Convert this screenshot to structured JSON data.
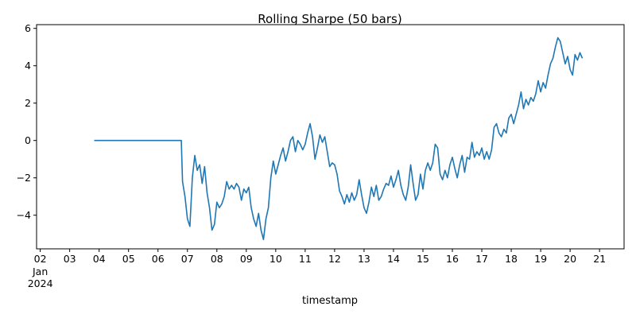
{
  "chart_data": {
    "type": "line",
    "title": "Rolling Sharpe (50 bars)",
    "xlabel": "timestamp",
    "ylabel": "",
    "x_tick_labels": [
      "02",
      "03",
      "04",
      "05",
      "06",
      "07",
      "08",
      "09",
      "10",
      "11",
      "12",
      "13",
      "14",
      "15",
      "16",
      "17",
      "18",
      "19",
      "20",
      "21"
    ],
    "x_tick_sublabel_month": "Jan",
    "x_tick_sublabel_year": "2024",
    "y_ticks": [
      -4,
      -2,
      0,
      2,
      4,
      6
    ],
    "y_tick_labels": [
      "−4",
      "−2",
      "0",
      "2",
      "4",
      "6"
    ],
    "xlim": [
      "2024-01-01T21:00",
      "2024-01-21T20:00"
    ],
    "ylim": [
      -5.8,
      6.2
    ],
    "grid": false,
    "line_color": "#1f77b4",
    "series": [
      {
        "points": [
          [
            "2024-01-03T20:00",
            0.0
          ],
          [
            "2024-01-04T12:00",
            0.0
          ],
          [
            "2024-01-05T12:00",
            0.0
          ],
          [
            "2024-01-06T12:00",
            0.0
          ],
          [
            "2024-01-06T19:00",
            0.0
          ],
          [
            "2024-01-06T20:00",
            -2.2
          ],
          [
            "2024-01-06T22:00",
            -3.0
          ],
          [
            "2024-01-07T00:00",
            -4.2
          ],
          [
            "2024-01-07T02:00",
            -4.6
          ],
          [
            "2024-01-07T04:00",
            -2.0
          ],
          [
            "2024-01-07T06:00",
            -0.8
          ],
          [
            "2024-01-07T08:00",
            -1.6
          ],
          [
            "2024-01-07T10:00",
            -1.3
          ],
          [
            "2024-01-07T12:00",
            -2.3
          ],
          [
            "2024-01-07T14:00",
            -1.4
          ],
          [
            "2024-01-07T16:00",
            -2.8
          ],
          [
            "2024-01-07T18:00",
            -3.6
          ],
          [
            "2024-01-07T20:00",
            -4.8
          ],
          [
            "2024-01-07T22:00",
            -4.5
          ],
          [
            "2024-01-08T00:00",
            -3.3
          ],
          [
            "2024-01-08T02:00",
            -3.6
          ],
          [
            "2024-01-08T04:00",
            -3.4
          ],
          [
            "2024-01-08T06:00",
            -3.0
          ],
          [
            "2024-01-08T08:00",
            -2.2
          ],
          [
            "2024-01-08T10:00",
            -2.6
          ],
          [
            "2024-01-08T12:00",
            -2.4
          ],
          [
            "2024-01-08T14:00",
            -2.6
          ],
          [
            "2024-01-08T16:00",
            -2.3
          ],
          [
            "2024-01-08T18:00",
            -2.5
          ],
          [
            "2024-01-08T20:00",
            -3.2
          ],
          [
            "2024-01-08T22:00",
            -2.6
          ],
          [
            "2024-01-09T00:00",
            -2.8
          ],
          [
            "2024-01-09T02:00",
            -2.5
          ],
          [
            "2024-01-09T04:00",
            -3.6
          ],
          [
            "2024-01-09T06:00",
            -4.2
          ],
          [
            "2024-01-09T08:00",
            -4.6
          ],
          [
            "2024-01-09T10:00",
            -3.9
          ],
          [
            "2024-01-09T12:00",
            -4.8
          ],
          [
            "2024-01-09T14:00",
            -5.3
          ],
          [
            "2024-01-09T16:00",
            -4.2
          ],
          [
            "2024-01-09T18:00",
            -3.6
          ],
          [
            "2024-01-09T20:00",
            -2.0
          ],
          [
            "2024-01-09T22:00",
            -1.1
          ],
          [
            "2024-01-10T00:00",
            -1.8
          ],
          [
            "2024-01-10T02:00",
            -1.3
          ],
          [
            "2024-01-10T04:00",
            -0.8
          ],
          [
            "2024-01-10T06:00",
            -0.4
          ],
          [
            "2024-01-10T08:00",
            -1.1
          ],
          [
            "2024-01-10T10:00",
            -0.6
          ],
          [
            "2024-01-10T12:00",
            0.0
          ],
          [
            "2024-01-10T14:00",
            0.2
          ],
          [
            "2024-01-10T16:00",
            -0.6
          ],
          [
            "2024-01-10T18:00",
            0.0
          ],
          [
            "2024-01-10T20:00",
            -0.2
          ],
          [
            "2024-01-10T22:00",
            -0.5
          ],
          [
            "2024-01-11T00:00",
            -0.2
          ],
          [
            "2024-01-11T02:00",
            0.4
          ],
          [
            "2024-01-11T04:00",
            0.9
          ],
          [
            "2024-01-11T06:00",
            0.2
          ],
          [
            "2024-01-11T08:00",
            -1.0
          ],
          [
            "2024-01-11T10:00",
            -0.4
          ],
          [
            "2024-01-11T12:00",
            0.3
          ],
          [
            "2024-01-11T14:00",
            -0.1
          ],
          [
            "2024-01-11T16:00",
            0.2
          ],
          [
            "2024-01-11T18:00",
            -0.6
          ],
          [
            "2024-01-11T20:00",
            -1.4
          ],
          [
            "2024-01-11T22:00",
            -1.2
          ],
          [
            "2024-01-12T00:00",
            -1.3
          ],
          [
            "2024-01-12T02:00",
            -1.8
          ],
          [
            "2024-01-12T04:00",
            -2.7
          ],
          [
            "2024-01-12T06:00",
            -3.0
          ],
          [
            "2024-01-12T08:00",
            -3.4
          ],
          [
            "2024-01-12T10:00",
            -2.9
          ],
          [
            "2024-01-12T12:00",
            -3.3
          ],
          [
            "2024-01-12T14:00",
            -2.8
          ],
          [
            "2024-01-12T16:00",
            -3.2
          ],
          [
            "2024-01-12T18:00",
            -2.9
          ],
          [
            "2024-01-12T20:00",
            -2.1
          ],
          [
            "2024-01-12T22:00",
            -2.9
          ],
          [
            "2024-01-13T00:00",
            -3.6
          ],
          [
            "2024-01-13T02:00",
            -3.9
          ],
          [
            "2024-01-13T04:00",
            -3.3
          ],
          [
            "2024-01-13T06:00",
            -2.5
          ],
          [
            "2024-01-13T08:00",
            -3.0
          ],
          [
            "2024-01-13T10:00",
            -2.4
          ],
          [
            "2024-01-13T12:00",
            -3.2
          ],
          [
            "2024-01-13T14:00",
            -3.0
          ],
          [
            "2024-01-13T16:00",
            -2.6
          ],
          [
            "2024-01-13T18:00",
            -2.3
          ],
          [
            "2024-01-13T20:00",
            -2.4
          ],
          [
            "2024-01-13T22:00",
            -1.9
          ],
          [
            "2024-01-14T00:00",
            -2.5
          ],
          [
            "2024-01-14T02:00",
            -2.1
          ],
          [
            "2024-01-14T04:00",
            -1.6
          ],
          [
            "2024-01-14T06:00",
            -2.4
          ],
          [
            "2024-01-14T08:00",
            -2.9
          ],
          [
            "2024-01-14T10:00",
            -3.2
          ],
          [
            "2024-01-14T12:00",
            -2.5
          ],
          [
            "2024-01-14T14:00",
            -1.3
          ],
          [
            "2024-01-14T16:00",
            -2.3
          ],
          [
            "2024-01-14T18:00",
            -3.2
          ],
          [
            "2024-01-14T20:00",
            -2.9
          ],
          [
            "2024-01-14T22:00",
            -1.8
          ],
          [
            "2024-01-15T00:00",
            -2.6
          ],
          [
            "2024-01-15T02:00",
            -1.6
          ],
          [
            "2024-01-15T04:00",
            -1.2
          ],
          [
            "2024-01-15T06:00",
            -1.6
          ],
          [
            "2024-01-15T08:00",
            -1.2
          ],
          [
            "2024-01-15T10:00",
            -0.2
          ],
          [
            "2024-01-15T12:00",
            -0.4
          ],
          [
            "2024-01-15T14:00",
            -1.8
          ],
          [
            "2024-01-15T16:00",
            -2.1
          ],
          [
            "2024-01-15T18:00",
            -1.6
          ],
          [
            "2024-01-15T20:00",
            -2.0
          ],
          [
            "2024-01-15T22:00",
            -1.3
          ],
          [
            "2024-01-16T00:00",
            -0.9
          ],
          [
            "2024-01-16T02:00",
            -1.5
          ],
          [
            "2024-01-16T04:00",
            -2.0
          ],
          [
            "2024-01-16T06:00",
            -1.3
          ],
          [
            "2024-01-16T08:00",
            -0.8
          ],
          [
            "2024-01-16T10:00",
            -1.7
          ],
          [
            "2024-01-16T12:00",
            -0.9
          ],
          [
            "2024-01-16T14:00",
            -1.0
          ],
          [
            "2024-01-16T16:00",
            -0.1
          ],
          [
            "2024-01-16T18:00",
            -0.9
          ],
          [
            "2024-01-16T20:00",
            -0.6
          ],
          [
            "2024-01-16T22:00",
            -0.8
          ],
          [
            "2024-01-17T00:00",
            -0.4
          ],
          [
            "2024-01-17T02:00",
            -1.0
          ],
          [
            "2024-01-17T04:00",
            -0.6
          ],
          [
            "2024-01-17T06:00",
            -1.0
          ],
          [
            "2024-01-17T08:00",
            -0.5
          ],
          [
            "2024-01-17T10:00",
            0.7
          ],
          [
            "2024-01-17T12:00",
            0.9
          ],
          [
            "2024-01-17T14:00",
            0.4
          ],
          [
            "2024-01-17T16:00",
            0.2
          ],
          [
            "2024-01-17T18:00",
            0.6
          ],
          [
            "2024-01-17T20:00",
            0.4
          ],
          [
            "2024-01-17T22:00",
            1.2
          ],
          [
            "2024-01-18T00:00",
            1.4
          ],
          [
            "2024-01-18T02:00",
            0.9
          ],
          [
            "2024-01-18T04:00",
            1.4
          ],
          [
            "2024-01-18T06:00",
            1.9
          ],
          [
            "2024-01-18T08:00",
            2.6
          ],
          [
            "2024-01-18T10:00",
            1.7
          ],
          [
            "2024-01-18T12:00",
            2.2
          ],
          [
            "2024-01-18T14:00",
            1.9
          ],
          [
            "2024-01-18T16:00",
            2.3
          ],
          [
            "2024-01-18T18:00",
            2.1
          ],
          [
            "2024-01-18T20:00",
            2.5
          ],
          [
            "2024-01-18T22:00",
            3.2
          ],
          [
            "2024-01-19T00:00",
            2.6
          ],
          [
            "2024-01-19T02:00",
            3.1
          ],
          [
            "2024-01-19T04:00",
            2.8
          ],
          [
            "2024-01-19T06:00",
            3.5
          ],
          [
            "2024-01-19T08:00",
            4.1
          ],
          [
            "2024-01-19T10:00",
            4.4
          ],
          [
            "2024-01-19T12:00",
            5.0
          ],
          [
            "2024-01-19T14:00",
            5.5
          ],
          [
            "2024-01-19T16:00",
            5.3
          ],
          [
            "2024-01-19T18:00",
            4.7
          ],
          [
            "2024-01-19T20:00",
            4.1
          ],
          [
            "2024-01-19T22:00",
            4.5
          ],
          [
            "2024-01-20T00:00",
            3.8
          ],
          [
            "2024-01-20T02:00",
            3.5
          ],
          [
            "2024-01-20T04:00",
            4.6
          ],
          [
            "2024-01-20T06:00",
            4.3
          ],
          [
            "2024-01-20T08:00",
            4.7
          ],
          [
            "2024-01-20T10:00",
            4.4
          ]
        ]
      }
    ]
  }
}
